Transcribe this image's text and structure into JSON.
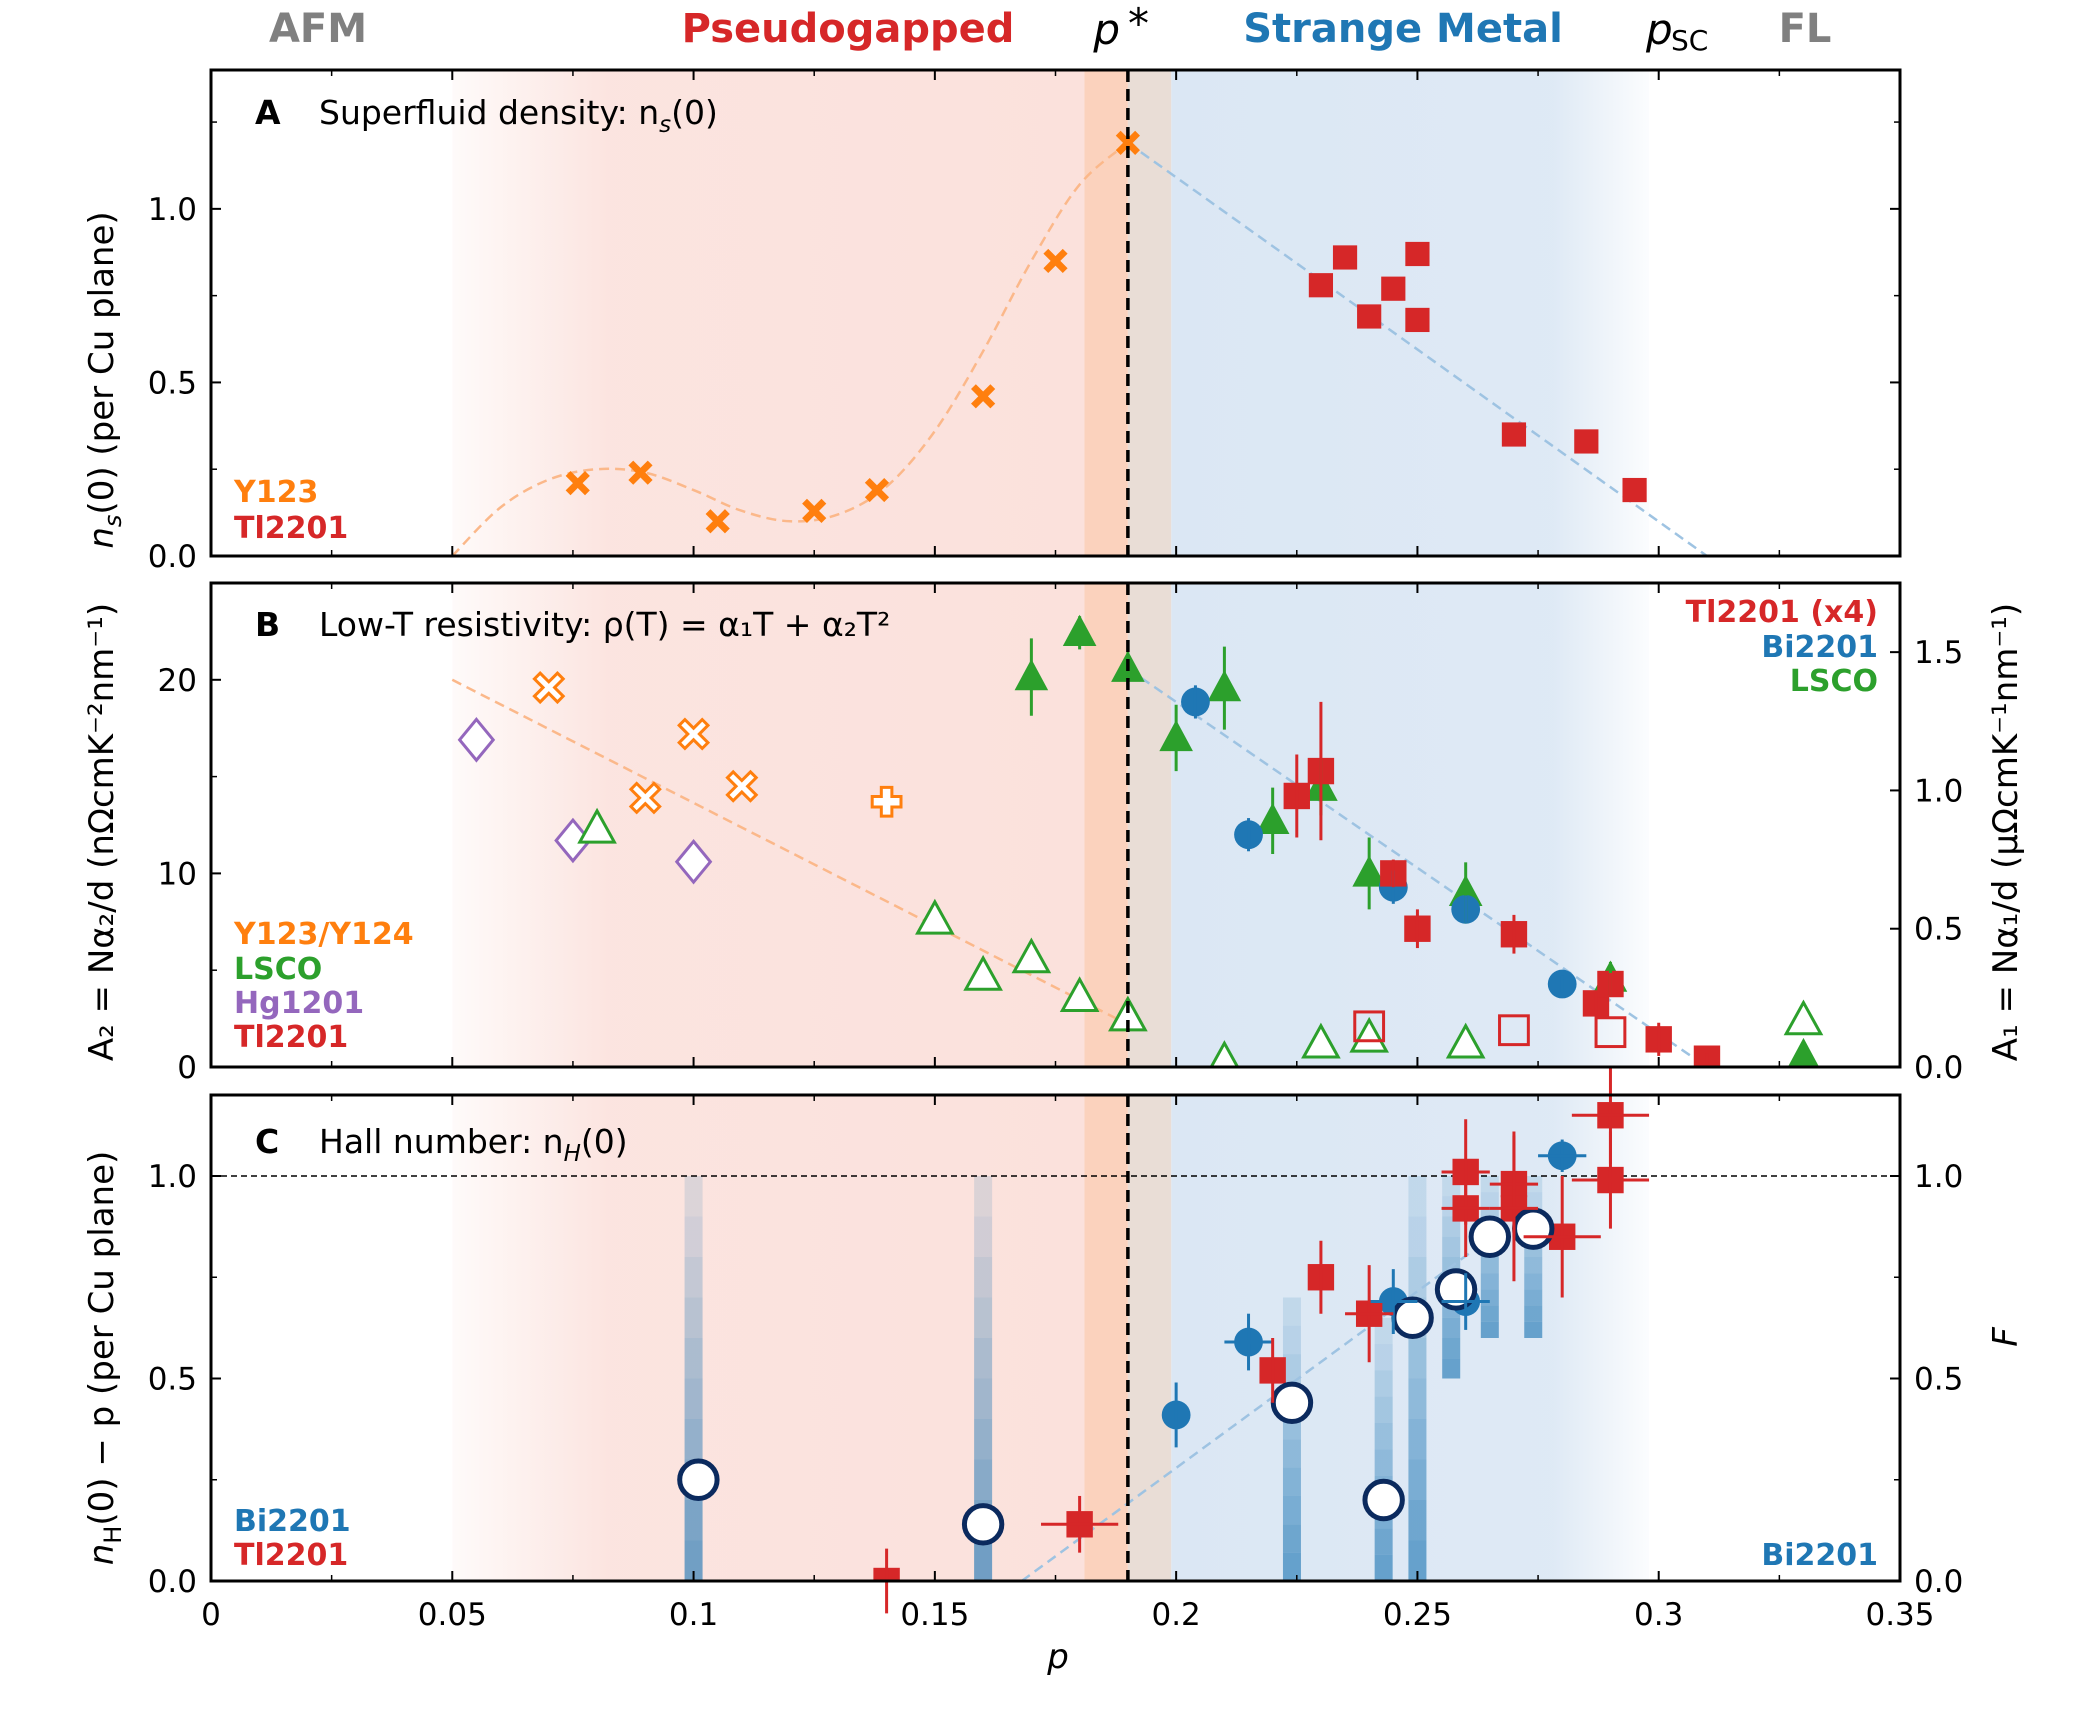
{
  "colors": {
    "orange": "#ff7f0e",
    "red": "#d62728",
    "blue": "#1f77b4",
    "green": "#2ca02c",
    "purple": "#9467bd",
    "navy": "#0b2a5e",
    "gray": "#808080",
    "pseudogap_bg": "#fbe1dc",
    "pstar_band": "#fbd2bd",
    "strange_bg": "#dbe7f4",
    "blue_line": "#9ec3e2",
    "orange_line": "#fbb88a"
  },
  "regions": {
    "afm": "AFM",
    "pseudogapped": "Pseudogapped",
    "pstar": "p",
    "pstar_sup": "*",
    "strange_metal": "Strange Metal",
    "psc": "p",
    "psc_sub": "SC",
    "fl": "FL"
  },
  "chart_data": [
    {
      "type": "scatter",
      "panel": "A",
      "title": "Superfluid density: n",
      "title_sub": "s",
      "title_tail": "(0)",
      "xlabel": "p",
      "ylabel": "n",
      "ylabel_sub": "s",
      "ylabel_tail": "(0) (per Cu plane)",
      "xlim": [
        0,
        0.35
      ],
      "ylim": [
        0,
        1.4
      ],
      "yticks": [
        0.0,
        0.5,
        1.0
      ],
      "ytick_labels": [
        "0.0",
        "0.5",
        "1.0"
      ],
      "legend": [
        {
          "label": "Y123",
          "color": "#ff7f0e"
        },
        {
          "label": "Tl2201",
          "color": "#d62728"
        }
      ],
      "series": [
        {
          "name": "Y123",
          "marker": "x-filled",
          "color": "#ff7f0e",
          "x": [
            0.076,
            0.089,
            0.105,
            0.125,
            0.138,
            0.16,
            0.175,
            0.19
          ],
          "y": [
            0.21,
            0.24,
            0.1,
            0.13,
            0.19,
            0.46,
            0.85,
            1.19
          ]
        },
        {
          "name": "Tl2201",
          "marker": "square",
          "color": "#d62728",
          "x": [
            0.23,
            0.235,
            0.24,
            0.245,
            0.25,
            0.25,
            0.27,
            0.285,
            0.295
          ],
          "y": [
            0.78,
            0.86,
            0.69,
            0.77,
            0.87,
            0.68,
            0.35,
            0.33,
            0.19
          ],
          "yerr": [
            0,
            0,
            0.03,
            0.03,
            0,
            0,
            0.03,
            0,
            0.02
          ]
        }
      ],
      "fit_lines": [
        {
          "name": "Y123 fit",
          "color": "#fbb88a",
          "x": [
            0.05,
            0.06,
            0.07,
            0.08,
            0.09,
            0.1,
            0.11,
            0.12,
            0.13,
            0.14,
            0.15,
            0.16,
            0.17,
            0.18,
            0.19
          ],
          "y": [
            0.0,
            0.14,
            0.22,
            0.25,
            0.24,
            0.19,
            0.13,
            0.1,
            0.12,
            0.2,
            0.36,
            0.59,
            0.85,
            1.07,
            1.19
          ]
        },
        {
          "name": "Tl2201 fit",
          "color": "#9ec3e2",
          "x": [
            0.19,
            0.31
          ],
          "y": [
            1.19,
            0.0
          ]
        }
      ]
    },
    {
      "type": "scatter",
      "panel": "B",
      "title": "Low-T resistivity: ρ(T) = α",
      "title_display": "Low-T resistivity: ρ(T) = α₁T + α₂T²",
      "xlabel": "p",
      "ylabel_left": "A₂ = Nα₂/d (nΩcmK⁻²nm⁻¹)",
      "ylabel_right": "A₁ = Nα₁/d (μΩcmK⁻¹nm⁻¹)",
      "xlim": [
        0,
        0.35
      ],
      "ylim_left": [
        0,
        25
      ],
      "ylim_right": [
        0,
        1.75
      ],
      "yticks_left": [
        0,
        10,
        20
      ],
      "ytick_labels_left": [
        "0",
        "10",
        "20"
      ],
      "yticks_right": [
        0.0,
        0.5,
        1.0,
        1.5
      ],
      "ytick_labels_right": [
        "0.0",
        "0.5",
        "1.0",
        "1.5"
      ],
      "legend_left": [
        {
          "label": "Y123/Y124",
          "color": "#ff7f0e"
        },
        {
          "label": "LSCO",
          "color": "#2ca02c"
        },
        {
          "label": "Hg1201",
          "color": "#9467bd"
        },
        {
          "label": "Tl2201",
          "color": "#d62728"
        }
      ],
      "legend_right": [
        {
          "label": "Tl2201 (x4)",
          "color": "#d62728"
        },
        {
          "label": "Bi2201",
          "color": "#1f77b4"
        },
        {
          "label": "LSCO",
          "color": "#2ca02c"
        }
      ],
      "series": [
        {
          "name": "Y123 A2",
          "axis": "left",
          "marker": "x-open",
          "color": "#ff7f0e",
          "x": [
            0.07,
            0.09,
            0.1,
            0.11
          ],
          "y": [
            19.6,
            13.9,
            17.2,
            14.5
          ]
        },
        {
          "name": "Y124 A2",
          "axis": "left",
          "marker": "plus-open",
          "color": "#ff7f0e",
          "x": [
            0.14
          ],
          "y": [
            13.7
          ]
        },
        {
          "name": "Hg1201 A2",
          "axis": "left",
          "marker": "diamond-open",
          "color": "#9467bd",
          "x": [
            0.055,
            0.075,
            0.1
          ],
          "y": [
            16.9,
            11.7,
            10.6
          ]
        },
        {
          "name": "LSCO A2",
          "axis": "left",
          "marker": "triangle-open",
          "color": "#2ca02c",
          "x": [
            0.08,
            0.15,
            0.16,
            0.17,
            0.18,
            0.19,
            0.21,
            0.23,
            0.24,
            0.26,
            0.33
          ],
          "y": [
            12.3,
            7.6,
            4.7,
            5.6,
            3.6,
            2.6,
            0.3,
            1.2,
            1.5,
            1.2,
            2.4
          ]
        },
        {
          "name": "Tl2201 A2",
          "axis": "left",
          "marker": "square-open",
          "color": "#d62728",
          "x": [
            0.24,
            0.27,
            0.29
          ],
          "y": [
            2.1,
            1.9,
            1.8
          ]
        },
        {
          "name": "LSCO A1",
          "axis": "right",
          "marker": "triangle",
          "color": "#2ca02c",
          "x": [
            0.17,
            0.18,
            0.19,
            0.2,
            0.21,
            0.22,
            0.23,
            0.24,
            0.26,
            0.29,
            0.33
          ],
          "y": [
            1.41,
            1.57,
            1.44,
            1.19,
            1.37,
            0.89,
            1.01,
            0.7,
            0.63,
            0.32,
            0.04
          ],
          "yerr": [
            0.14,
            0.06,
            0.06,
            0.12,
            0.15,
            0.12,
            0.1,
            0.13,
            0.11,
            0.06,
            0.02
          ]
        },
        {
          "name": "Bi2201 A1",
          "axis": "right",
          "marker": "circle",
          "color": "#1f77b4",
          "x": [
            0.204,
            0.215,
            0.245,
            0.26,
            0.28
          ],
          "y": [
            1.32,
            0.84,
            0.65,
            0.57,
            0.3
          ],
          "yerr": [
            0.06,
            0.06,
            0.06,
            0.05,
            0.03
          ]
        },
        {
          "name": "Tl2201 A1",
          "axis": "right",
          "marker": "square",
          "color": "#d62728",
          "x": [
            0.225,
            0.23,
            0.245,
            0.25,
            0.27,
            0.287,
            0.29,
            0.3,
            0.31
          ],
          "y": [
            0.98,
            1.07,
            0.7,
            0.5,
            0.48,
            0.23,
            0.3,
            0.1,
            0.03
          ],
          "yerr": [
            0.15,
            0.25,
            0.05,
            0.07,
            0.07,
            0.04,
            0.04,
            0.06,
            0.02
          ]
        }
      ],
      "fit_lines": [
        {
          "name": "A2 fit",
          "axis": "left",
          "color": "#fbb88a",
          "x": [
            0.05,
            0.19
          ],
          "y": [
            20.0,
            2.2
          ]
        },
        {
          "name": "A1 fit",
          "axis": "right",
          "color": "#9ec3e2",
          "x": [
            0.19,
            0.31
          ],
          "y": [
            1.44,
            0.0
          ]
        }
      ]
    },
    {
      "type": "scatter",
      "panel": "C",
      "title": "Hall number: n",
      "title_sub": "H",
      "title_tail": "(0)",
      "xlabel": "p",
      "ylabel_left": "n",
      "ylabel_left_sub": "H",
      "ylabel_left_tail": "(0) − p (per Cu plane)",
      "ylabel_right": "F",
      "xlim": [
        0,
        0.35
      ],
      "xticks": [
        0,
        0.05,
        0.1,
        0.15,
        0.2,
        0.25,
        0.3,
        0.35
      ],
      "xtick_labels": [
        "0",
        "0.05",
        "0.1",
        "0.15",
        "0.2",
        "0.25",
        "0.3",
        "0.35"
      ],
      "ylim": [
        0,
        1.2
      ],
      "yticks": [
        0.0,
        0.5,
        1.0
      ],
      "ytick_labels": [
        "0.0",
        "0.5",
        "1.0"
      ],
      "reference_line_y": 1.0,
      "legend_left": [
        {
          "label": "Bi2201",
          "color": "#1f77b4"
        },
        {
          "label": "Tl2201",
          "color": "#d62728"
        }
      ],
      "legend_right": [
        {
          "label": "Bi2201",
          "color": "#1f77b4"
        }
      ],
      "series": [
        {
          "name": "Bi2201 nH",
          "marker": "circle",
          "color": "#1f77b4",
          "x": [
            0.2,
            0.215,
            0.245,
            0.26,
            0.28
          ],
          "y": [
            0.41,
            0.59,
            0.69,
            0.69,
            1.05
          ],
          "yerr": [
            0.08,
            0.07,
            0.08,
            0.07,
            0.04
          ],
          "xerr": [
            0.0,
            0.005,
            0.005,
            0.005,
            0.005
          ]
        },
        {
          "name": "Tl2201 nH",
          "marker": "square",
          "color": "#d62728",
          "x": [
            0.14,
            0.18,
            0.22,
            0.23,
            0.24,
            0.26,
            0.26,
            0.27,
            0.27,
            0.28,
            0.29,
            0.29
          ],
          "y": [
            0.0,
            0.14,
            0.52,
            0.75,
            0.66,
            1.01,
            0.92,
            0.98,
            0.92,
            0.85,
            1.15,
            0.99
          ],
          "yerr": [
            0.08,
            0.07,
            0.08,
            0.09,
            0.12,
            0.13,
            0.12,
            0.13,
            0.18,
            0.15,
            0.12,
            0.12
          ],
          "xerr": [
            0,
            0.008,
            0,
            0,
            0.005,
            0.005,
            0.005,
            0.005,
            0.005,
            0.008,
            0.008,
            0.008
          ]
        },
        {
          "name": "Bi2201 F",
          "marker": "circle-open",
          "color": "#0b2a5e",
          "x": [
            0.101,
            0.16,
            0.224,
            0.243,
            0.249,
            0.258,
            0.265,
            0.274
          ],
          "y": [
            0.25,
            0.14,
            0.44,
            0.2,
            0.65,
            0.72,
            0.85,
            0.87
          ]
        }
      ],
      "F_distribution_columns": [
        {
          "x": 0.1,
          "y_min": 0.0,
          "y_max": 1.0
        },
        {
          "x": 0.16,
          "y_min": 0.0,
          "y_max": 1.0
        },
        {
          "x": 0.224,
          "y_min": 0.0,
          "y_max": 0.7
        },
        {
          "x": 0.243,
          "y_min": 0.0,
          "y_max": 0.65
        },
        {
          "x": 0.25,
          "y_min": 0.0,
          "y_max": 1.0
        },
        {
          "x": 0.257,
          "y_min": 0.5,
          "y_max": 1.0
        },
        {
          "x": 0.265,
          "y_min": 0.6,
          "y_max": 1.0
        },
        {
          "x": 0.274,
          "y_min": 0.6,
          "y_max": 1.0
        }
      ],
      "fit_lines": [
        {
          "name": "nH fit",
          "color": "#9ec3e2",
          "x": [
            0.168,
            0.262
          ],
          "y": [
            0.0,
            0.82
          ]
        }
      ]
    }
  ]
}
